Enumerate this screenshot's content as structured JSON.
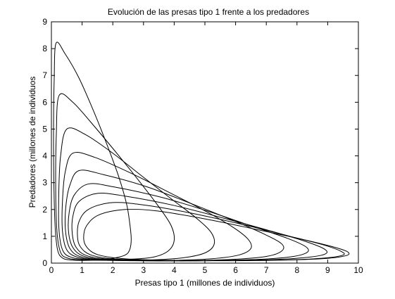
{
  "chart_data": {
    "type": "line",
    "title": "Evolución de las presas tipo 1 frente a los predadores",
    "xlabel": "Presas tipo 1 (millones de individuos)",
    "ylabel": "Predadores (millones de individuos",
    "xlim": [
      0,
      10
    ],
    "ylim": [
      0,
      9
    ],
    "xticks": [
      "0",
      "1",
      "2",
      "3",
      "4",
      "5",
      "6",
      "7",
      "8",
      "9",
      "10"
    ],
    "yticks": [
      "0",
      "1",
      "2",
      "3",
      "4",
      "5",
      "6",
      "7",
      "8",
      "9"
    ],
    "grid": false,
    "legend": "none",
    "line_color": "#000000",
    "series": [
      {
        "x": [
          0.15,
          0.45,
          0.9,
          1.4,
          1.85,
          2.2,
          2.45,
          2.55,
          2.6,
          2.55,
          2.4,
          2.0,
          1.5,
          1.0,
          0.6,
          0.35,
          0.2,
          0.12,
          0.08,
          0.07,
          0.09,
          0.15
        ],
        "y": [
          8.2,
          7.8,
          6.9,
          5.6,
          4.3,
          3.2,
          2.2,
          1.5,
          0.9,
          0.5,
          0.3,
          0.18,
          0.12,
          0.1,
          0.12,
          0.2,
          0.5,
          1.4,
          3.0,
          5.0,
          6.8,
          8.2
        ]
      },
      {
        "x": [
          0.25,
          0.7,
          1.4,
          2.2,
          2.9,
          3.5,
          3.9,
          4.0,
          3.8,
          3.3,
          2.5,
          1.7,
          1.0,
          0.55,
          0.3,
          0.18,
          0.14,
          0.16,
          0.25
        ],
        "y": [
          6.25,
          6.0,
          5.1,
          4.0,
          3.0,
          2.1,
          1.4,
          0.85,
          0.45,
          0.22,
          0.14,
          0.11,
          0.12,
          0.18,
          0.4,
          1.2,
          2.8,
          4.8,
          6.25
        ]
      },
      {
        "x": [
          0.5,
          1.1,
          2.0,
          3.0,
          3.9,
          4.7,
          5.2,
          5.3,
          5.0,
          4.3,
          3.3,
          2.2,
          1.3,
          0.7,
          0.38,
          0.25,
          0.24,
          0.3,
          0.5
        ],
        "y": [
          5.0,
          4.8,
          4.1,
          3.2,
          2.4,
          1.7,
          1.15,
          0.7,
          0.38,
          0.2,
          0.12,
          0.1,
          0.12,
          0.2,
          0.45,
          1.2,
          2.6,
          4.0,
          5.0
        ]
      },
      {
        "x": [
          0.7,
          1.4,
          2.6,
          3.9,
          5.0,
          5.9,
          6.4,
          6.5,
          6.1,
          5.2,
          3.9,
          2.6,
          1.5,
          0.85,
          0.5,
          0.36,
          0.36,
          0.45,
          0.7
        ],
        "y": [
          4.1,
          3.95,
          3.35,
          2.6,
          1.95,
          1.35,
          0.9,
          0.55,
          0.3,
          0.16,
          0.1,
          0.09,
          0.12,
          0.22,
          0.5,
          1.2,
          2.3,
          3.4,
          4.1
        ]
      },
      {
        "x": [
          0.9,
          1.7,
          3.1,
          4.6,
          5.9,
          6.9,
          7.5,
          7.5,
          7.0,
          5.9,
          4.4,
          2.9,
          1.7,
          0.95,
          0.6,
          0.46,
          0.47,
          0.6,
          0.9
        ],
        "y": [
          3.45,
          3.3,
          2.85,
          2.2,
          1.6,
          1.1,
          0.72,
          0.45,
          0.25,
          0.14,
          0.09,
          0.09,
          0.12,
          0.24,
          0.55,
          1.2,
          2.1,
          2.9,
          3.45
        ]
      },
      {
        "x": [
          1.2,
          2.0,
          3.6,
          5.2,
          6.6,
          7.7,
          8.3,
          8.3,
          7.7,
          6.5,
          4.8,
          3.1,
          1.8,
          1.05,
          0.7,
          0.56,
          0.58,
          0.75,
          1.2
        ],
        "y": [
          2.95,
          2.85,
          2.45,
          1.9,
          1.35,
          0.92,
          0.6,
          0.38,
          0.22,
          0.13,
          0.09,
          0.09,
          0.13,
          0.26,
          0.58,
          1.15,
          1.9,
          2.55,
          2.95
        ]
      },
      {
        "x": [
          1.5,
          2.4,
          4.0,
          5.7,
          7.2,
          8.3,
          8.9,
          8.9,
          8.2,
          6.9,
          5.1,
          3.3,
          1.95,
          1.15,
          0.8,
          0.68,
          0.7,
          0.9,
          1.5
        ],
        "y": [
          2.6,
          2.5,
          2.15,
          1.65,
          1.18,
          0.8,
          0.52,
          0.33,
          0.2,
          0.12,
          0.09,
          0.09,
          0.14,
          0.28,
          0.6,
          1.1,
          1.75,
          2.3,
          2.6
        ]
      },
      {
        "x": [
          1.9,
          2.8,
          4.4,
          6.2,
          7.7,
          8.8,
          9.4,
          9.5,
          8.8,
          7.4,
          5.4,
          3.5,
          2.1,
          1.3,
          0.95,
          0.85,
          0.9,
          1.2,
          1.9
        ],
        "y": [
          2.25,
          2.2,
          1.9,
          1.45,
          1.02,
          0.7,
          0.46,
          0.3,
          0.18,
          0.11,
          0.09,
          0.1,
          0.15,
          0.3,
          0.6,
          1.0,
          1.55,
          2.0,
          2.25
        ]
      },
      {
        "x": [
          2.4,
          3.4,
          5.0,
          6.7,
          8.2,
          9.2,
          9.65,
          9.6,
          8.9,
          7.4,
          5.4,
          3.6,
          2.3,
          1.5,
          1.15,
          1.05,
          1.15,
          1.55,
          2.4
        ],
        "y": [
          2.0,
          1.95,
          1.65,
          1.25,
          0.88,
          0.6,
          0.42,
          0.28,
          0.17,
          0.11,
          0.1,
          0.11,
          0.17,
          0.32,
          0.6,
          0.95,
          1.4,
          1.8,
          2.0
        ]
      }
    ]
  }
}
